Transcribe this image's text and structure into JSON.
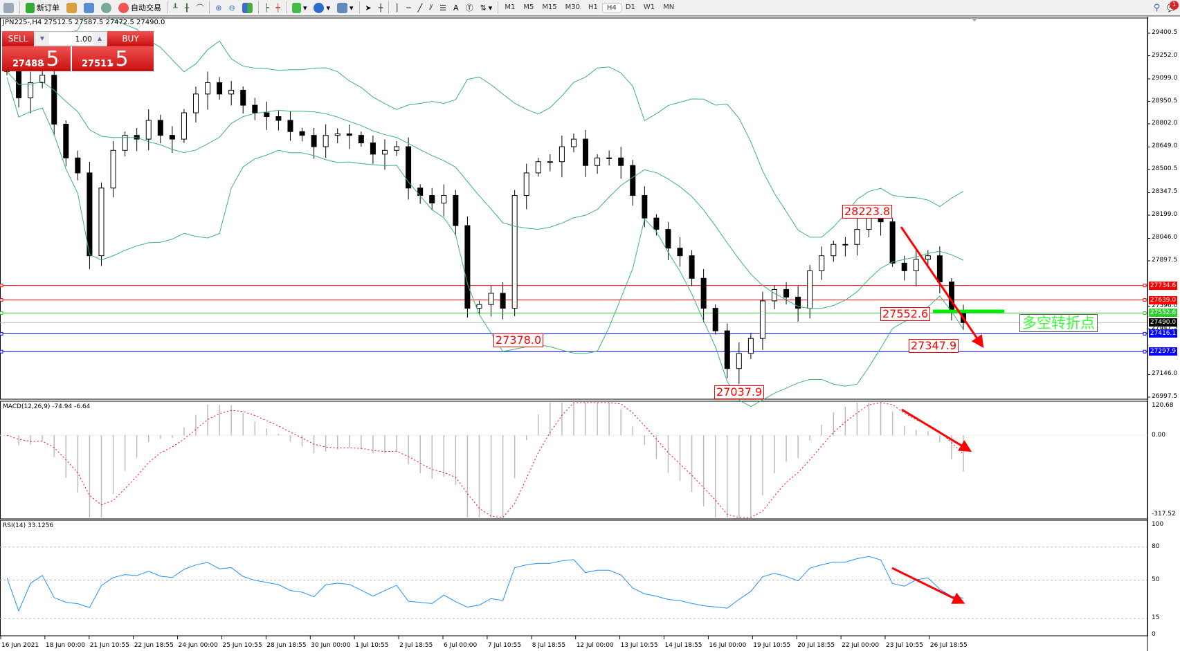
{
  "toolbar": {
    "new_order": "新订单",
    "auto_trading": "自动交易",
    "timeframes": [
      "M1",
      "M5",
      "M15",
      "M30",
      "H1",
      "H4",
      "D1",
      "W1",
      "MN"
    ],
    "active_timeframe": "H4",
    "notification_count": "1"
  },
  "chart": {
    "title": "JPN225-,H4  27512.5 27587.5 27472.5 27490.0"
  },
  "trade_panel": {
    "sell_label": "SELL",
    "buy_label": "BUY",
    "lot": "1.00",
    "sell_main": "27488",
    "sell_big": ".5",
    "buy_main": "27511",
    "buy_big": ".5"
  },
  "annotations": {
    "high": "28223.8",
    "low1": "27378.0",
    "low2": "27037.9",
    "pivot": "27552.6",
    "recent_low": "27347.9",
    "pivot_note": "多空转折点"
  },
  "chart_data": [
    {
      "type": "candlestick",
      "symbol": "JPN225-",
      "timeframe": "H4",
      "ylim": [
        26997.5,
        29400.5
      ],
      "y_ticks": [
        "29400.5",
        "29252.0",
        "29099.0",
        "28950.5",
        "28802.0",
        "28649.0",
        "28500.5",
        "28347.5",
        "28199.0",
        "28046.0",
        "27897.5",
        "27596.0",
        "27447.5",
        "27146.0",
        "26997.5"
      ],
      "x_ticks": [
        "16 Jun 2021",
        "18 Jun 00:00",
        "21 Jun 10:55",
        "22 Jun 18:55",
        "24 Jun 00:00",
        "25 Jun 10:55",
        "28 Jun 18:55",
        "30 Jun 00:00",
        "1 Jul 10:55",
        "2 Jul 18:55",
        "6 Jul 00:00",
        "7 Jul 10:55",
        "8 Jul 18:55",
        "12 Jul 00:00",
        "13 Jul 10:55",
        "14 Jul 18:55",
        "16 Jul 00:00",
        "19 Jul 10:55",
        "20 Jul 18:55",
        "22 Jul 00:00",
        "23 Jul 10:55",
        "26 Jul 18:55"
      ],
      "closes": [
        29148,
        28974,
        29074,
        29123,
        28800,
        28577,
        28478,
        27931,
        28378,
        28627,
        28726,
        28701,
        28825,
        28726,
        28701,
        28875,
        28999,
        29074,
        28999,
        29024,
        28925,
        28875,
        28850,
        28825,
        28751,
        28726,
        28651,
        28726,
        28736,
        28726,
        28676,
        28602,
        28627,
        28651,
        28378,
        28329,
        28279,
        28329,
        28130,
        27584,
        27609,
        27683,
        27584,
        28329,
        28478,
        28552,
        28552,
        28651,
        28701,
        28527,
        28577,
        28577,
        28527,
        28329,
        28180,
        28105,
        27981,
        27931,
        27782,
        27584,
        27435,
        27186,
        27286,
        27385,
        27633,
        27708,
        27658,
        27584,
        27832,
        27931,
        28006,
        28006,
        28105,
        28180,
        28155,
        27882,
        27832,
        27907,
        27931,
        27758,
        27559,
        27490
      ],
      "horizontal_lines": [
        {
          "price": "27734.6",
          "color": "#ff0000"
        },
        {
          "price": "27639.0",
          "color": "#ff0000"
        },
        {
          "price": "27552.6",
          "color": "#33cc33"
        },
        {
          "price": "27490.0",
          "color": "#000000",
          "kind": "bid"
        },
        {
          "price": "27416.1",
          "color": "#0000ff"
        },
        {
          "price": "27297.9",
          "color": "#0000ff"
        }
      ],
      "overlay": "bollinger bands (green)"
    },
    {
      "type": "macd",
      "label": "MACD(12,26,9) -74.94 -6.64",
      "ylim": [
        -317.52,
        120.68
      ],
      "y_ticks": [
        "120.68",
        "0.00",
        "-317.52"
      ]
    },
    {
      "type": "rsi",
      "label": "RSI(14) 33.1256",
      "ylim": [
        0,
        100
      ],
      "y_ticks": [
        "100",
        "80",
        "50",
        "15",
        "0"
      ]
    }
  ]
}
